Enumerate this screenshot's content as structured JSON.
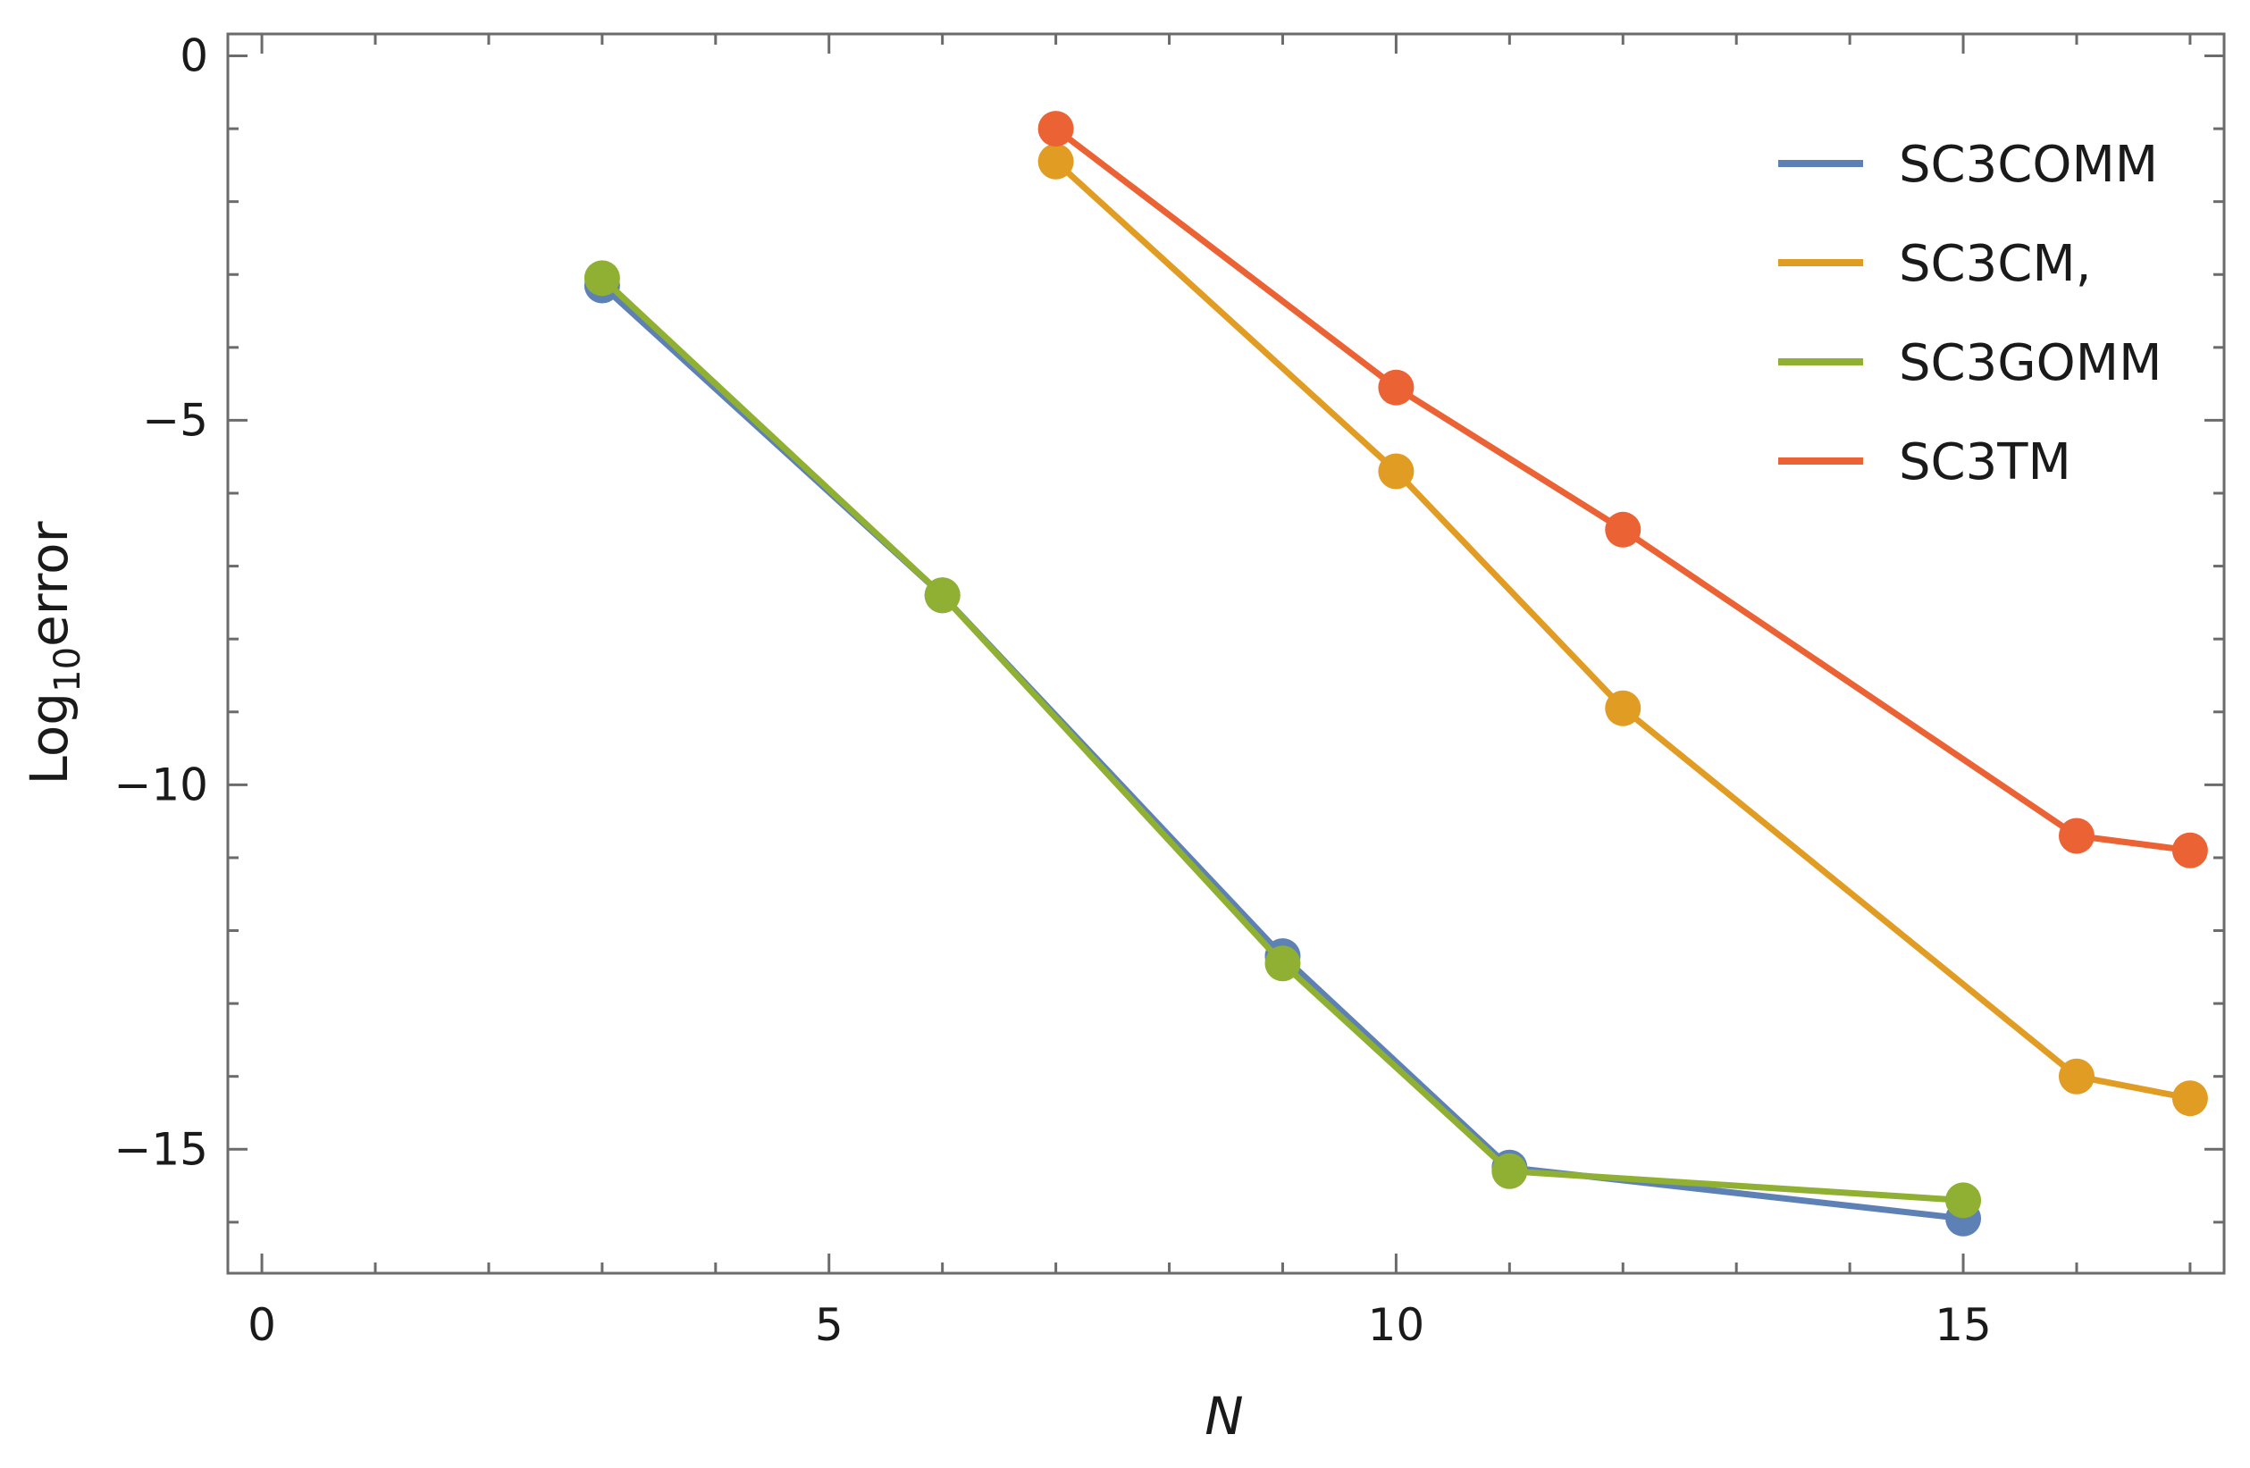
{
  "chart_data": {
    "type": "line",
    "xlabel": "N",
    "ylabel": {
      "prefix": "Log",
      "sub": "10",
      "suffix": "error"
    },
    "xlim": [
      -0.3,
      17.3
    ],
    "ylim": [
      -16.7,
      0.3
    ],
    "x_ticks": [
      0,
      5,
      10,
      15
    ],
    "x_tick_labels": [
      "0",
      "5",
      "10",
      "15"
    ],
    "y_ticks": [
      0,
      -5,
      -10,
      -15
    ],
    "y_tick_labels": [
      "0",
      "−5",
      "−10",
      "−15"
    ],
    "x_minor_step": 1,
    "y_minor_step": 1,
    "grid": false,
    "legend_position": "top-right",
    "series": [
      {
        "name": "SC3COMM",
        "color": "#5e81b5",
        "x": [
          3,
          6,
          9,
          11,
          15
        ],
        "y": [
          -3.15,
          -7.4,
          -12.35,
          -15.25,
          -15.95
        ]
      },
      {
        "name": "SC3CM,",
        "color": "#e19c24",
        "x": [
          7,
          10,
          12,
          16,
          17
        ],
        "y": [
          -1.45,
          -5.7,
          -8.95,
          -14.0,
          -14.3
        ]
      },
      {
        "name": "SC3GOMM",
        "color": "#8fb032",
        "x": [
          3,
          6,
          9,
          11,
          15
        ],
        "y": [
          -3.05,
          -7.4,
          -12.45,
          -15.3,
          -15.7
        ]
      },
      {
        "name": "SC3TM",
        "color": "#eb6235",
        "x": [
          7,
          10,
          12,
          16,
          17
        ],
        "y": [
          -1.0,
          -4.55,
          -6.5,
          -10.7,
          -10.9
        ]
      }
    ]
  }
}
